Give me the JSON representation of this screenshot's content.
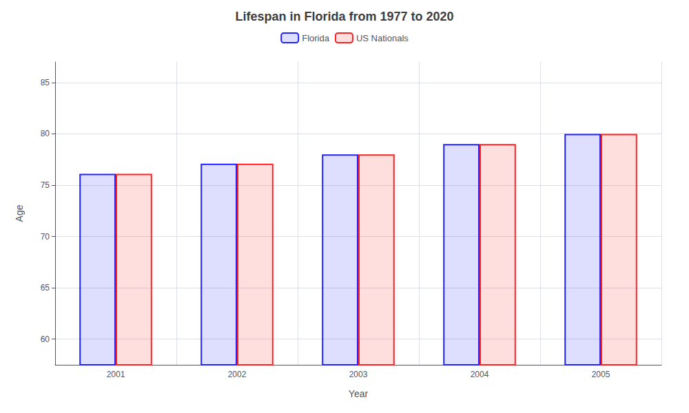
{
  "chart_data": {
    "type": "bar",
    "title": "Lifespan in Florida from 1977 to 2020",
    "xlabel": "Year",
    "ylabel": "Age",
    "categories": [
      "2001",
      "2002",
      "2003",
      "2004",
      "2005"
    ],
    "series": [
      {
        "name": "Florida",
        "color": "#2222ff",
        "values": [
          76.1,
          77.1,
          78.0,
          79.0,
          80.0
        ]
      },
      {
        "name": "US Nationals",
        "color": "#ff2222",
        "values": [
          76.1,
          77.1,
          78.0,
          79.0,
          80.0
        ]
      }
    ],
    "ylim": [
      57.5,
      87
    ],
    "yticks": [
      60,
      65,
      70,
      75,
      80,
      85
    ],
    "grid": true,
    "legend": "top"
  }
}
